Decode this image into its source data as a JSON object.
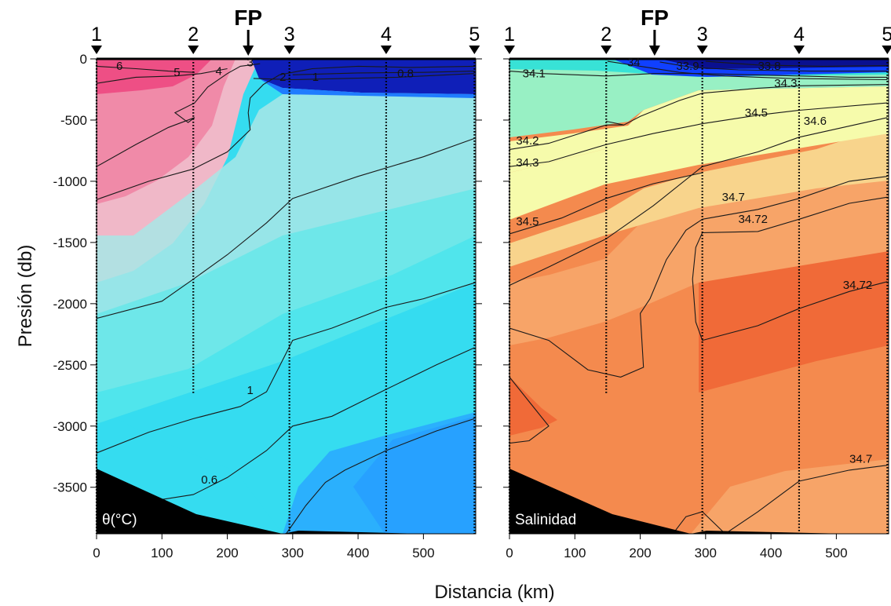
{
  "chart_data": [
    {
      "type": "heatmap",
      "panel_label": "θ(°C)",
      "xlabel": "Distancia (km)",
      "ylabel": "Presión (db)",
      "xlim": [
        0,
        580
      ],
      "ylim": [
        0,
        3880
      ],
      "y_inverted": true,
      "x_ticks": [
        "0",
        "100",
        "200",
        "300",
        "400",
        "500"
      ],
      "y_ticks": [
        "0",
        "-500",
        "-1000",
        "-1500",
        "-2000",
        "-2500",
        "-3000",
        "-3500"
      ],
      "colormap": [
        "#0f1fb8",
        "#1f7cff",
        "#29b6ff",
        "#35dcf0",
        "#5ce8ea",
        "#a8e6e6",
        "#f0b8c8",
        "#f08aa8",
        "#ee4f85"
      ],
      "stations": [
        {
          "label": "1",
          "distance_km": 0,
          "max_depth_db": 3880
        },
        {
          "label": "2",
          "distance_km": 148,
          "max_depth_db": 2740
        },
        {
          "label": "3",
          "distance_km": 295,
          "max_depth_db": 3880
        },
        {
          "label": "4",
          "distance_km": 443,
          "max_depth_db": 3880
        },
        {
          "label": "5",
          "distance_km": 578,
          "max_depth_db": 3880
        }
      ],
      "front_marker": {
        "label": "FP",
        "distance_km": 232
      },
      "contours": [
        {
          "value": "6",
          "label_at": [
            30,
            90
          ],
          "points": [
            [
              0,
              60
            ],
            [
              60,
              80
            ],
            [
              110,
              100
            ],
            [
              150,
              110
            ]
          ]
        },
        {
          "value": "5",
          "label_at": [
            118,
            140
          ],
          "points": [
            [
              0,
              200
            ],
            [
              60,
              150
            ],
            [
              120,
              140
            ],
            [
              160,
              120
            ],
            [
              200,
              80
            ]
          ]
        },
        {
          "value": "4",
          "label_at": [
            182,
            130
          ],
          "points": [
            [
              0,
              880
            ],
            [
              60,
              700
            ],
            [
              110,
              560
            ],
            [
              150,
              480
            ],
            [
              140,
              520
            ],
            [
              120,
              440
            ],
            [
              150,
              360
            ],
            [
              170,
              230
            ],
            [
              200,
              120
            ],
            [
              220,
              60
            ],
            [
              250,
              40
            ]
          ]
        },
        {
          "value": "3",
          "label_at": [
            230,
            60
          ],
          "points": [
            [
              0,
              1150
            ],
            [
              80,
              1000
            ],
            [
              148,
              900
            ],
            [
              200,
              760
            ],
            [
              235,
              580
            ],
            [
              232,
              440
            ],
            [
              235,
              320
            ],
            [
              255,
              210
            ],
            [
              280,
              130
            ],
            [
              330,
              80
            ],
            [
              400,
              60
            ],
            [
              480,
              70
            ],
            [
              578,
              60
            ]
          ]
        },
        {
          "value": "2",
          "label_at": [
            280,
            180
          ],
          "points": [
            [
              0,
              2120
            ],
            [
              100,
              1980
            ],
            [
              148,
              1800
            ],
            [
              200,
              1600
            ],
            [
              260,
              1340
            ],
            [
              300,
              1140
            ],
            [
              400,
              960
            ],
            [
              500,
              800
            ],
            [
              578,
              650
            ]
          ]
        },
        {
          "value": "1",
          "label_at": [
            330,
            180
          ],
          "points": [
            [
              240,
              160
            ],
            [
              300,
              170
            ],
            [
              380,
              160
            ],
            [
              460,
              150
            ],
            [
              578,
              120
            ]
          ]
        },
        {
          "value": "0.8",
          "label_at": [
            460,
            150
          ],
          "points": [
            [
              300,
              130
            ],
            [
              400,
              115
            ],
            [
              500,
              110
            ],
            [
              578,
              100
            ]
          ]
        },
        {
          "value": "1",
          "label_at": [
            230,
            2740
          ],
          "points": [
            [
              0,
              3220
            ],
            [
              80,
              3050
            ],
            [
              148,
              2940
            ],
            [
              220,
              2840
            ],
            [
              260,
              2720
            ],
            [
              300,
              2300
            ],
            [
              360,
              2200
            ],
            [
              443,
              2030
            ],
            [
              500,
              1960
            ],
            [
              578,
              1830
            ]
          ]
        },
        {
          "value": "0.6",
          "label_at": [
            160,
            3470
          ],
          "points": [
            [
              100,
              3600
            ],
            [
              148,
              3560
            ],
            [
              200,
              3420
            ],
            [
              260,
              3200
            ],
            [
              300,
              3000
            ],
            [
              360,
              2920
            ],
            [
              443,
              2700
            ],
            [
              520,
              2500
            ],
            [
              578,
              2360
            ]
          ]
        },
        {
          "value": "0.6b",
          "label_at": [
            0,
            0
          ],
          "points": [
            [
              290,
              3880
            ],
            [
              320,
              3650
            ],
            [
              350,
              3460
            ],
            [
              380,
              3360
            ],
            [
              443,
              3200
            ],
            [
              520,
              3040
            ],
            [
              578,
              2940
            ]
          ]
        }
      ]
    },
    {
      "type": "heatmap",
      "panel_label": "Salinidad",
      "xlabel": "Distancia (km)",
      "ylabel": "Presión (db)",
      "xlim": [
        0,
        580
      ],
      "ylim": [
        0,
        3880
      ],
      "y_inverted": true,
      "x_ticks": [
        "0",
        "100",
        "200",
        "300",
        "400",
        "500"
      ],
      "y_ticks": [
        "0",
        "-500",
        "-1000",
        "-1500",
        "-2000",
        "-2500",
        "-3000",
        "-3500"
      ],
      "colormap": [
        "#0a1090",
        "#1040ff",
        "#1ea8f2",
        "#38e2d6",
        "#98f0c4",
        "#f6fbab",
        "#f8d48c",
        "#f7a468",
        "#f48a4e",
        "#f06a38"
      ],
      "stations": [
        {
          "label": "1",
          "distance_km": 0,
          "max_depth_db": 3880
        },
        {
          "label": "2",
          "distance_km": 148,
          "max_depth_db": 2740
        },
        {
          "label": "3",
          "distance_km": 295,
          "max_depth_db": 3880
        },
        {
          "label": "4",
          "distance_km": 443,
          "max_depth_db": 3880
        },
        {
          "label": "5",
          "distance_km": 578,
          "max_depth_db": 3880
        }
      ],
      "front_marker": {
        "label": "FP",
        "distance_km": 222
      },
      "contours": [
        {
          "value": "34",
          "label_at": [
            180,
            60
          ],
          "points": [
            [
              150,
              20
            ],
            [
              200,
              60
            ],
            [
              260,
              110
            ],
            [
              330,
              140
            ],
            [
              430,
              160
            ],
            [
              578,
              170
            ]
          ]
        },
        {
          "value": "33.9",
          "label_at": [
            255,
            90
          ],
          "points": [
            [
              230,
              25
            ],
            [
              280,
              70
            ],
            [
              350,
              90
            ],
            [
              460,
              100
            ],
            [
              578,
              100
            ]
          ]
        },
        {
          "value": "33.8",
          "label_at": [
            380,
            90
          ],
          "points": [
            [
              300,
              20
            ],
            [
              380,
              50
            ],
            [
              480,
              60
            ],
            [
              578,
              55
            ]
          ]
        },
        {
          "value": "34.1",
          "label_at": [
            20,
            150
          ],
          "points": [
            [
              0,
              100
            ],
            [
              50,
              120
            ],
            [
              148,
              140
            ],
            [
              220,
              120
            ],
            [
              295,
              120
            ],
            [
              443,
              140
            ],
            [
              520,
              150
            ],
            [
              578,
              150
            ]
          ]
        },
        {
          "value": "34.1r",
          "label_at": [
            0,
            0
          ],
          "points": [
            [
              0,
              0
            ]
          ]
        },
        {
          "value": "34.3",
          "label_at": [
            405,
            230
          ],
          "points": [
            [
              148,
              510
            ],
            [
              175,
              540
            ],
            [
              200,
              470
            ],
            [
              260,
              340
            ],
            [
              295,
              280
            ],
            [
              380,
              240
            ],
            [
              443,
              220
            ],
            [
              578,
              210
            ]
          ]
        },
        {
          "value": "34.2",
          "label_at": [
            10,
            700
          ],
          "points": [
            [
              0,
              740
            ],
            [
              60,
              690
            ],
            [
              148,
              540
            ],
            [
              175,
              540
            ]
          ]
        },
        {
          "value": "34.5",
          "label_at": [
            360,
            470
          ],
          "points": [
            [
              0,
              880
            ],
            [
              60,
              840
            ],
            [
              148,
              700
            ],
            [
              220,
              610
            ],
            [
              295,
              530
            ],
            [
              380,
              460
            ],
            [
              443,
              420
            ],
            [
              578,
              360
            ]
          ]
        },
        {
          "value": "34.6",
          "label_at": [
            450,
            540
          ],
          "points": [
            [
              0,
              1850
            ],
            [
              60,
              1700
            ],
            [
              148,
              1470
            ],
            [
              220,
              1200
            ],
            [
              295,
              880
            ],
            [
              380,
              760
            ],
            [
              443,
              640
            ],
            [
              578,
              480
            ]
          ]
        },
        {
          "value": "34.3b",
          "label_at": [
            10,
            880
          ],
          "points": []
        },
        {
          "value": "34.5b",
          "label_at": [
            10,
            1360
          ],
          "points": [
            [
              0,
              1430
            ],
            [
              80,
              1300
            ],
            [
              148,
              1140
            ],
            [
              220,
              1020
            ],
            [
              295,
              930
            ]
          ]
        },
        {
          "value": "34.7",
          "label_at": [
            325,
            1160
          ],
          "points": [
            [
              0,
              2200
            ],
            [
              60,
              2300
            ],
            [
              120,
              2540
            ],
            [
              170,
              2600
            ],
            [
              205,
              2520
            ],
            [
              200,
              2080
            ],
            [
              215,
              1960
            ],
            [
              240,
              1640
            ],
            [
              270,
              1400
            ],
            [
              295,
              1310
            ],
            [
              380,
              1230
            ],
            [
              443,
              1140
            ],
            [
              520,
              1000
            ],
            [
              578,
              960
            ]
          ]
        },
        {
          "value": "34.72",
          "label_at": [
            350,
            1340
          ],
          "points": [
            [
              295,
              1420
            ],
            [
              380,
              1410
            ],
            [
              443,
              1310
            ],
            [
              520,
              1180
            ],
            [
              578,
              1130
            ]
          ]
        },
        {
          "value": "34.72b",
          "label_at": [
            510,
            1880
          ],
          "points": [
            [
              295,
              1420
            ],
            [
              285,
              1540
            ],
            [
              280,
              1800
            ],
            [
              285,
              2150
            ],
            [
              295,
              2300
            ],
            [
              380,
              2180
            ],
            [
              443,
              2040
            ],
            [
              520,
              1900
            ],
            [
              578,
              1820
            ]
          ]
        },
        {
          "value": "34.7b",
          "label_at": [
            520,
            3300
          ],
          "points": [
            [
              330,
              3880
            ],
            [
              380,
              3700
            ],
            [
              443,
              3450
            ],
            [
              520,
              3360
            ],
            [
              578,
              3320
            ]
          ]
        },
        {
          "value": "34.7c",
          "label_at": [
            0,
            0
          ],
          "points": [
            [
              0,
              2600
            ],
            [
              30,
              2800
            ],
            [
              60,
              3000
            ],
            [
              30,
              3120
            ],
            [
              0,
              3140
            ]
          ]
        },
        {
          "value": "34.7d",
          "label_at": [
            0,
            0
          ],
          "points": [
            [
              250,
              3880
            ],
            [
              270,
              3740
            ],
            [
              295,
              3700
            ],
            [
              330,
              3880
            ]
          ]
        }
      ]
    }
  ],
  "colors": {
    "bottom_topography": "#000000",
    "contour_line": "#1a1a1a"
  }
}
